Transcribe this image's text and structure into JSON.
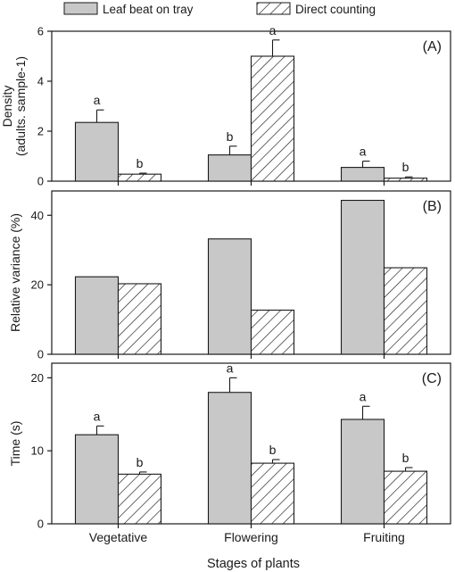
{
  "legend": [
    {
      "label": "Leaf beat on tray",
      "fill": "#c8c8c8",
      "pattern": "solid"
    },
    {
      "label": "Direct counting",
      "fill": "#ffffff",
      "pattern": "hatch"
    }
  ],
  "xlabel": "Stages of plants",
  "categories": [
    "Vegetative",
    "Flowering",
    "Fruiting"
  ],
  "colors": {
    "bar_fill": "#c8c8c8",
    "stroke": "#1a1a1a",
    "background": "#ffffff"
  },
  "chart_data": [
    {
      "type": "bar",
      "panel": "(A)",
      "ylabel_lines": [
        "Density",
        "(adults. sample-1)"
      ],
      "ylim": [
        0,
        6
      ],
      "yticks": [
        0,
        2,
        4,
        6
      ],
      "categories": [
        "Vegetative",
        "Flowering",
        "Fruiting"
      ],
      "series": [
        {
          "name": "Leaf beat on tray",
          "values": [
            2.35,
            1.05,
            0.55
          ],
          "errors": [
            0.5,
            0.35,
            0.25
          ],
          "letters": [
            "a",
            "b",
            "a"
          ]
        },
        {
          "name": "Direct counting",
          "values": [
            0.28,
            5.0,
            0.12
          ],
          "errors": [
            0.04,
            0.65,
            0.05
          ],
          "letters": [
            "b",
            "a",
            "b"
          ]
        }
      ]
    },
    {
      "type": "bar",
      "panel": "(B)",
      "ylabel_lines": [
        "Relative variance (%)"
      ],
      "ylim": [
        0,
        47
      ],
      "yticks": [
        0,
        20,
        40
      ],
      "categories": [
        "Vegetative",
        "Flowering",
        "Fruiting"
      ],
      "series": [
        {
          "name": "Leaf beat on tray",
          "values": [
            22.3,
            33.2,
            44.3
          ]
        },
        {
          "name": "Direct counting",
          "values": [
            20.3,
            12.7,
            24.9
          ]
        }
      ]
    },
    {
      "type": "bar",
      "panel": "(C)",
      "ylabel_lines": [
        "Time (s)"
      ],
      "ylim": [
        0,
        22
      ],
      "yticks": [
        0,
        10,
        20
      ],
      "categories": [
        "Vegetative",
        "Flowering",
        "Fruiting"
      ],
      "series": [
        {
          "name": "Leaf beat on tray",
          "values": [
            12.2,
            18.0,
            14.3
          ],
          "errors": [
            1.2,
            2.0,
            1.8
          ],
          "letters": [
            "a",
            "a",
            "a"
          ]
        },
        {
          "name": "Direct counting",
          "values": [
            6.8,
            8.3,
            7.2
          ],
          "errors": [
            0.3,
            0.5,
            0.5
          ],
          "letters": [
            "b",
            "b",
            "b"
          ]
        }
      ]
    }
  ]
}
